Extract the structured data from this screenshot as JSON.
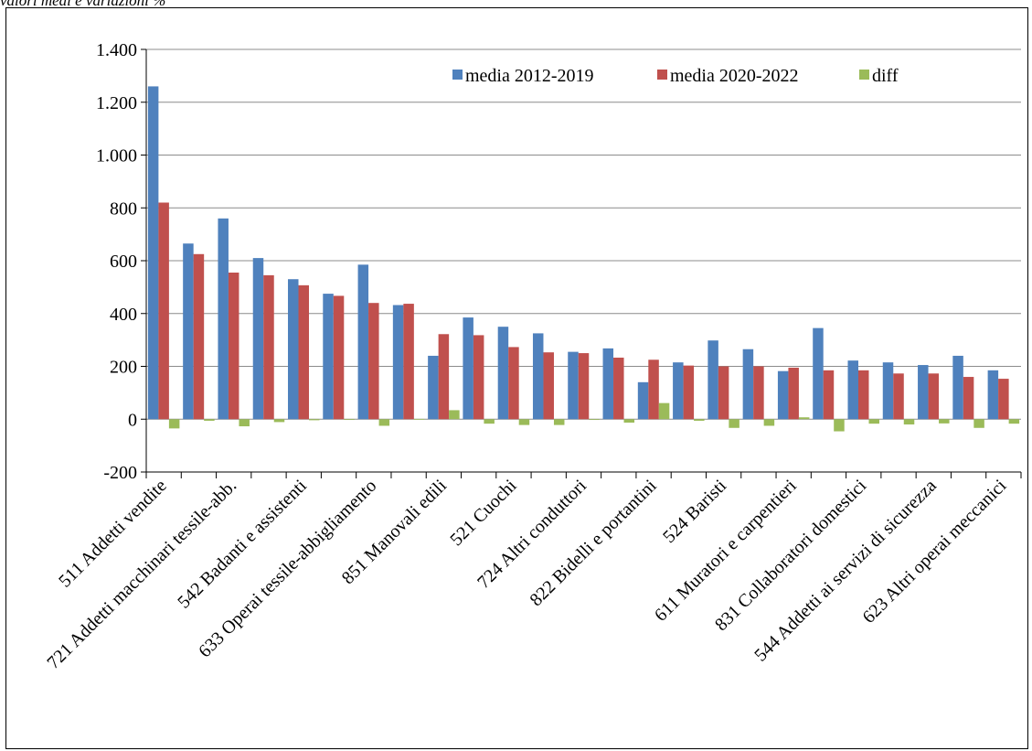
{
  "caption": "valori medi e variazioni %",
  "chart_data": {
    "type": "bar",
    "title": "",
    "xlabel": "",
    "ylabel": "",
    "ylim": [
      -200,
      1400
    ],
    "y_ticks": [
      -200,
      0,
      200,
      400,
      600,
      800,
      1000,
      1200,
      1400
    ],
    "y_tick_labels": [
      "-200",
      "0",
      "200",
      "400",
      "600",
      "800",
      "1.000",
      "1.200",
      "1.400"
    ],
    "grid": true,
    "legend_position": "top-right",
    "categories": [
      "511 Addetti vendite",
      "",
      "721 Addetti macchinari tessile-abb.",
      "",
      "542 Badanti e assistenti",
      "",
      "633 Operai tessile-abbigliamento",
      "",
      "851 Manovali edili",
      "",
      "521 Cuochi",
      "",
      "724 Altri conduttori",
      "",
      "822 Bidelli e portantini",
      "",
      "524 Baristi",
      "",
      "611 Muratori e carpentieri",
      "",
      "831 Collaboratori domestici",
      "",
      "544 Addetti ai servizi di sicurezza",
      "",
      "623 Altri operai meccanici"
    ],
    "series": [
      {
        "name": "media 2012-2019",
        "color": "#4F81BD",
        "values": [
          1260,
          665,
          760,
          610,
          530,
          475,
          585,
          432,
          240,
          385,
          350,
          325,
          255,
          268,
          140,
          215,
          298,
          265,
          182,
          345,
          222,
          215,
          205,
          240,
          185
        ]
      },
      {
        "name": "media 2020-2022",
        "color": "#C0504D",
        "values": [
          820,
          625,
          555,
          545,
          507,
          467,
          440,
          437,
          322,
          318,
          273,
          253,
          250,
          233,
          225,
          203,
          200,
          200,
          195,
          185,
          185,
          173,
          173,
          160,
          153
        ]
      },
      {
        "name": "diff",
        "color": "#9BBB59",
        "values": [
          -35,
          -6,
          -27,
          -11,
          -4,
          -2,
          -25,
          1,
          34,
          -17,
          -22,
          -22,
          -2,
          -13,
          61,
          -6,
          -33,
          -25,
          7,
          -46,
          -17,
          -20,
          -16,
          -33,
          -17
        ]
      }
    ]
  }
}
